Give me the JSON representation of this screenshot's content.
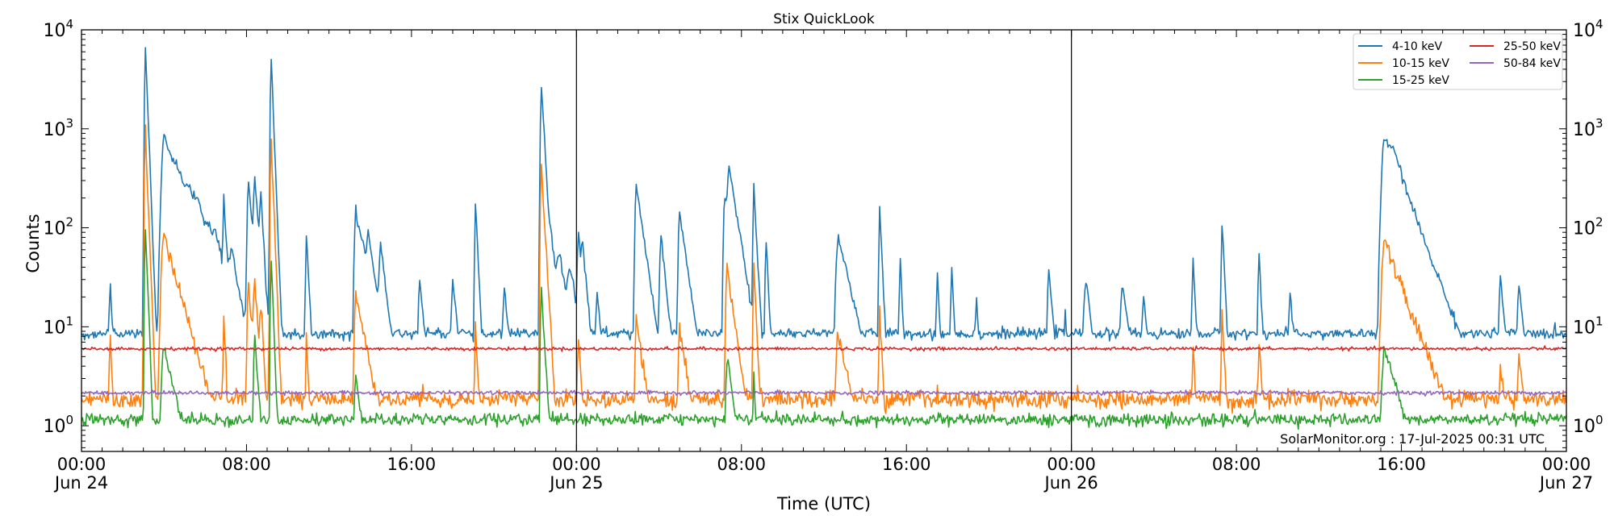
{
  "chart_data": {
    "type": "line",
    "title": "Stix QuickLook",
    "xlabel": "Time (UTC)",
    "ylabel": "Counts",
    "y_scale": "log",
    "ylim": [
      0.55,
      10000
    ],
    "y_ticks": [
      {
        "value": 1,
        "base": "10",
        "exp": "0"
      },
      {
        "value": 10,
        "base": "10",
        "exp": "1"
      },
      {
        "value": 100,
        "base": "10",
        "exp": "2"
      },
      {
        "value": 1000,
        "base": "10",
        "exp": "3"
      },
      {
        "value": 10000,
        "base": "10",
        "exp": "4"
      }
    ],
    "x_ticks": [
      {
        "time": "2025-06-24T00:00",
        "hour": 0,
        "label": "00:00",
        "sublabel": "Jun 24"
      },
      {
        "time": "2025-06-24T08:00",
        "hour": 8,
        "label": "08:00",
        "sublabel": ""
      },
      {
        "time": "2025-06-24T16:00",
        "hour": 16,
        "label": "16:00",
        "sublabel": ""
      },
      {
        "time": "2025-06-25T00:00",
        "hour": 24,
        "label": "00:00",
        "sublabel": "Jun 25"
      },
      {
        "time": "2025-06-25T08:00",
        "hour": 32,
        "label": "08:00",
        "sublabel": ""
      },
      {
        "time": "2025-06-25T16:00",
        "hour": 40,
        "label": "16:00",
        "sublabel": ""
      },
      {
        "time": "2025-06-26T00:00",
        "hour": 48,
        "label": "00:00",
        "sublabel": "Jun 26"
      },
      {
        "time": "2025-06-26T08:00",
        "hour": 56,
        "label": "08:00",
        "sublabel": ""
      },
      {
        "time": "2025-06-26T16:00",
        "hour": 64,
        "label": "16:00",
        "sublabel": ""
      },
      {
        "time": "2025-06-27T00:00",
        "hour": 72,
        "label": "00:00",
        "sublabel": "Jun 27"
      }
    ],
    "x_range": [
      "2025-06-24T00:00",
      "2025-06-27T00:00"
    ],
    "day_boundaries": [
      "2025-06-25T00:00",
      "2025-06-26T00:00"
    ],
    "legend_position": "top-right",
    "grid": false,
    "annotation": "SolarMonitor.org : 17-Jul-2025 00:31 UTC",
    "series": [
      {
        "name": "4-10 keV",
        "color": "#1f77b4",
        "baseline": 8.5,
        "noise": 0.06,
        "spike_scale": 1.0,
        "spike_floor": 0,
        "peaks": [
          [
            1.4,
            27,
            0.05,
            0.1
          ],
          [
            3.1,
            6500,
            0.035,
            0.08
          ],
          [
            4.0,
            800,
            0.1,
            0.9
          ],
          [
            5.2,
            70,
            0.1,
            0.4
          ],
          [
            5.6,
            40,
            0.08,
            0.3
          ],
          [
            6.2,
            25,
            0.1,
            0.3
          ],
          [
            6.5,
            30,
            0.1,
            0.3
          ],
          [
            6.9,
            160,
            0.03,
            0.08
          ],
          [
            7.3,
            40,
            0.1,
            0.2
          ],
          [
            8.1,
            290,
            0.05,
            0.15
          ],
          [
            8.4,
            270,
            0.05,
            0.15
          ],
          [
            8.7,
            200,
            0.04,
            0.1
          ],
          [
            9.2,
            5000,
            0.035,
            0.08
          ],
          [
            10.9,
            95,
            0.03,
            0.1
          ],
          [
            13.3,
            140,
            0.06,
            0.5
          ],
          [
            13.9,
            50,
            0.05,
            0.2
          ],
          [
            14.5,
            55,
            0.05,
            0.2
          ],
          [
            16.4,
            30,
            0.05,
            0.2
          ],
          [
            18.0,
            30,
            0.05,
            0.2
          ],
          [
            19.1,
            180,
            0.03,
            0.1
          ],
          [
            20.5,
            25,
            0.05,
            0.2
          ],
          [
            22.3,
            2600,
            0.04,
            0.12
          ],
          [
            22.8,
            45,
            0.1,
            0.4
          ],
          [
            23.2,
            35,
            0.1,
            0.3
          ],
          [
            23.7,
            30,
            0.1,
            0.3
          ],
          [
            24.1,
            85,
            0.04,
            0.12
          ],
          [
            24.3,
            50,
            0.05,
            0.2
          ],
          [
            25.0,
            20,
            0.05,
            0.2
          ],
          [
            26.9,
            270,
            0.05,
            0.3
          ],
          [
            28.1,
            80,
            0.05,
            0.2
          ],
          [
            29.0,
            140,
            0.05,
            0.3
          ],
          [
            31.2,
            200,
            0.06,
            0.4
          ],
          [
            31.4,
            300,
            0.05,
            0.3
          ],
          [
            32.6,
            260,
            0.03,
            0.1
          ],
          [
            33.2,
            65,
            0.04,
            0.1
          ],
          [
            36.7,
            80,
            0.1,
            0.5
          ],
          [
            38.7,
            150,
            0.03,
            0.1
          ],
          [
            39.7,
            45,
            0.04,
            0.1
          ],
          [
            41.5,
            35,
            0.04,
            0.1
          ],
          [
            42.2,
            40,
            0.04,
            0.1
          ],
          [
            43.4,
            20,
            0.05,
            0.1
          ],
          [
            46.9,
            38,
            0.05,
            0.2
          ],
          [
            47.7,
            13,
            0.05,
            0.1
          ],
          [
            48.7,
            27,
            0.1,
            0.3
          ],
          [
            50.5,
            25,
            0.1,
            0.3
          ],
          [
            51.5,
            20,
            0.05,
            0.2
          ],
          [
            53.9,
            50,
            0.04,
            0.1
          ],
          [
            55.3,
            120,
            0.03,
            0.1
          ],
          [
            57.1,
            55,
            0.04,
            0.1
          ],
          [
            58.6,
            20,
            0.06,
            0.2
          ],
          [
            63.2,
            800,
            0.12,
            0.8
          ],
          [
            63.6,
            200,
            0.08,
            0.3
          ],
          [
            68.8,
            30,
            0.05,
            0.2
          ],
          [
            69.7,
            27,
            0.05,
            0.2
          ]
        ]
      },
      {
        "name": "10-15 keV",
        "color": "#ff7f0e",
        "baseline": 1.85,
        "noise": 0.1,
        "spike_scale": 0.32,
        "spike_floor": 3,
        "peaks": [
          [
            1.4,
            7,
            0.05,
            0.1
          ],
          [
            3.1,
            1000,
            0.035,
            0.08
          ],
          [
            4.0,
            80,
            0.1,
            0.6
          ],
          [
            6.9,
            12,
            0.03,
            0.08
          ],
          [
            8.1,
            30,
            0.05,
            0.15
          ],
          [
            8.4,
            25,
            0.05,
            0.15
          ],
          [
            8.7,
            15,
            0.04,
            0.1
          ],
          [
            9.2,
            800,
            0.035,
            0.08
          ],
          [
            10.9,
            8,
            0.03,
            0.1
          ],
          [
            13.3,
            22,
            0.06,
            0.4
          ],
          [
            19.1,
            10,
            0.03,
            0.1
          ],
          [
            22.3,
            400,
            0.04,
            0.12
          ],
          [
            24.1,
            8,
            0.04,
            0.12
          ],
          [
            26.9,
            12,
            0.05,
            0.3
          ],
          [
            29.0,
            10,
            0.05,
            0.3
          ],
          [
            31.3,
            40,
            0.05,
            0.3
          ],
          [
            32.6,
            40,
            0.03,
            0.1
          ],
          [
            36.7,
            8,
            0.1,
            0.5
          ],
          [
            38.7,
            15,
            0.03,
            0.1
          ],
          [
            53.9,
            6,
            0.04,
            0.1
          ],
          [
            55.3,
            15,
            0.03,
            0.1
          ],
          [
            57.1,
            8,
            0.04,
            0.1
          ],
          [
            63.2,
            70,
            0.12,
            0.8
          ],
          [
            68.8,
            4.5,
            0.05,
            0.2
          ],
          [
            69.7,
            5,
            0.05,
            0.2
          ]
        ]
      },
      {
        "name": "15-25 keV",
        "color": "#2ca02c",
        "baseline": 1.15,
        "noise": 0.07,
        "spike_scale": 0.22,
        "spike_floor": 5,
        "peaks": [
          [
            3.1,
            95,
            0.035,
            0.08
          ],
          [
            4.0,
            6,
            0.1,
            0.5
          ],
          [
            8.4,
            8,
            0.05,
            0.15
          ],
          [
            9.2,
            50,
            0.035,
            0.08
          ],
          [
            13.3,
            3,
            0.06,
            0.3
          ],
          [
            22.3,
            25,
            0.04,
            0.12
          ],
          [
            31.3,
            5,
            0.05,
            0.3
          ],
          [
            32.6,
            3,
            0.03,
            0.1
          ],
          [
            63.2,
            6,
            0.12,
            0.6
          ]
        ]
      },
      {
        "name": "25-50 keV",
        "color": "#d62728",
        "baseline": 6.0,
        "noise": 0.018,
        "spike_scale": 0,
        "spike_floor": 0,
        "peaks": []
      },
      {
        "name": "50-84 keV",
        "color": "#9467bd",
        "baseline": 2.15,
        "noise": 0.022,
        "spike_scale": 0,
        "spike_floor": 0,
        "peaks": []
      }
    ]
  }
}
